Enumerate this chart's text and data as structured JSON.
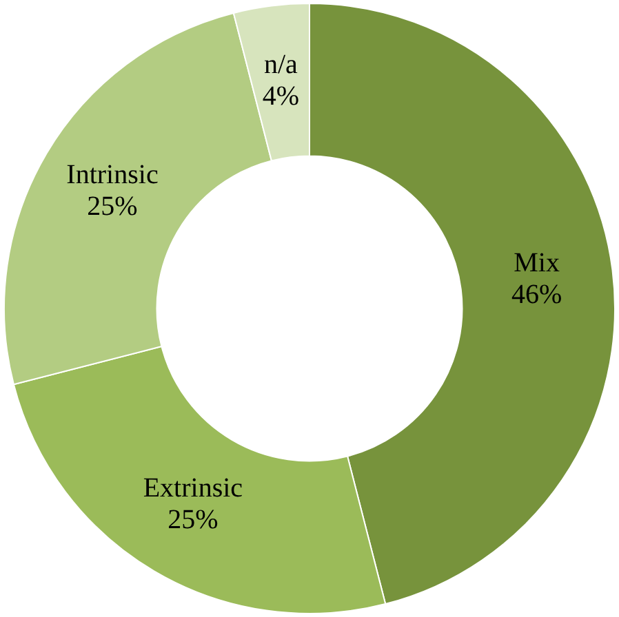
{
  "chart_data": {
    "type": "donut",
    "categories": [
      "Mix",
      "Extrinsic",
      "Intrinsic",
      "n/a"
    ],
    "values": [
      46,
      25,
      25,
      4
    ],
    "colors": [
      "#77933c",
      "#9bbb59",
      "#b3cc82",
      "#d7e4bd"
    ],
    "value_labels": [
      "46%",
      "25%",
      "25%",
      "4%"
    ],
    "legend": false
  }
}
